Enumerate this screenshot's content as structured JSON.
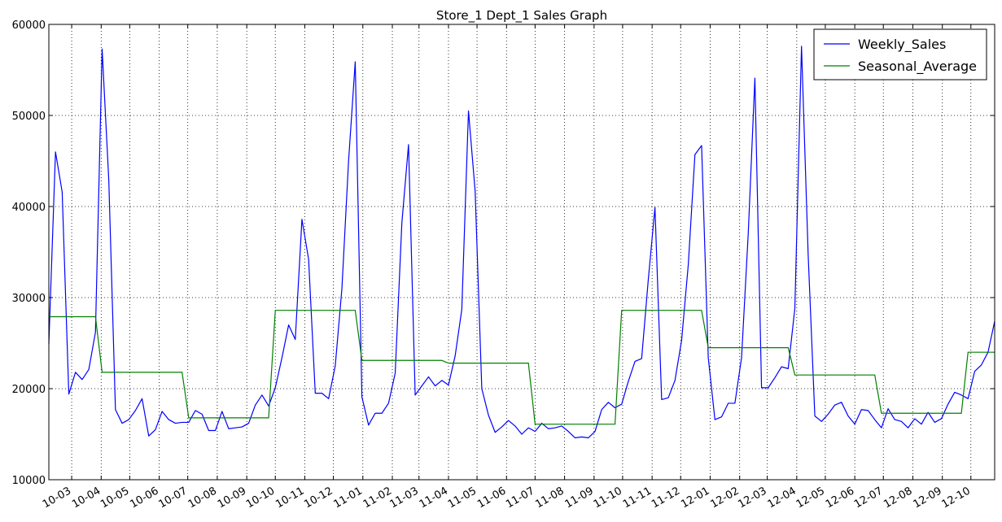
{
  "chart_data": {
    "type": "line",
    "title": "Store_1 Dept_1 Sales Graph",
    "xlabel": "",
    "ylabel": "",
    "x_range": [
      "2010-02-05",
      "2012-10-26"
    ],
    "ylim": [
      10000,
      60000
    ],
    "yticks": [
      10000,
      20000,
      30000,
      40000,
      50000,
      60000
    ],
    "xticks": [
      {
        "date": "2010-03-01",
        "label": "10-03"
      },
      {
        "date": "2010-04-01",
        "label": "10-04"
      },
      {
        "date": "2010-05-01",
        "label": "10-05"
      },
      {
        "date": "2010-06-01",
        "label": "10-06"
      },
      {
        "date": "2010-07-01",
        "label": "10-07"
      },
      {
        "date": "2010-08-01",
        "label": "10-08"
      },
      {
        "date": "2010-09-01",
        "label": "10-09"
      },
      {
        "date": "2010-10-01",
        "label": "10-10"
      },
      {
        "date": "2010-11-01",
        "label": "10-11"
      },
      {
        "date": "2010-12-01",
        "label": "10-12"
      },
      {
        "date": "2011-01-01",
        "label": "11-01"
      },
      {
        "date": "2011-02-01",
        "label": "11-02"
      },
      {
        "date": "2011-03-01",
        "label": "11-03"
      },
      {
        "date": "2011-04-01",
        "label": "11-04"
      },
      {
        "date": "2011-05-01",
        "label": "11-05"
      },
      {
        "date": "2011-06-01",
        "label": "11-06"
      },
      {
        "date": "2011-07-01",
        "label": "11-07"
      },
      {
        "date": "2011-08-01",
        "label": "11-08"
      },
      {
        "date": "2011-09-01",
        "label": "11-09"
      },
      {
        "date": "2011-10-01",
        "label": "11-10"
      },
      {
        "date": "2011-11-01",
        "label": "11-11"
      },
      {
        "date": "2011-12-01",
        "label": "11-12"
      },
      {
        "date": "2012-01-01",
        "label": "12-01"
      },
      {
        "date": "2012-02-01",
        "label": "12-02"
      },
      {
        "date": "2012-03-01",
        "label": "12-03"
      },
      {
        "date": "2012-04-01",
        "label": "12-04"
      },
      {
        "date": "2012-05-01",
        "label": "12-05"
      },
      {
        "date": "2012-06-01",
        "label": "12-06"
      },
      {
        "date": "2012-07-01",
        "label": "12-07"
      },
      {
        "date": "2012-08-01",
        "label": "12-08"
      },
      {
        "date": "2012-09-01",
        "label": "12-09"
      },
      {
        "date": "2012-10-01",
        "label": "12-10"
      }
    ],
    "grid": true,
    "legend": "top-right",
    "series": [
      {
        "name": "Weekly_Sales",
        "color": "#0000ff",
        "points": [
          [
            "2010-02-05",
            24900
          ],
          [
            "2010-02-12",
            46000
          ],
          [
            "2010-02-19",
            41600
          ],
          [
            "2010-02-26",
            19400
          ],
          [
            "2010-03-05",
            21800
          ],
          [
            "2010-03-12",
            21000
          ],
          [
            "2010-03-19",
            22100
          ],
          [
            "2010-03-26",
            26200
          ],
          [
            "2010-04-02",
            57300
          ],
          [
            "2010-04-09",
            42900
          ],
          [
            "2010-04-16",
            17700
          ],
          [
            "2010-04-23",
            16200
          ],
          [
            "2010-04-30",
            16600
          ],
          [
            "2010-05-07",
            17600
          ],
          [
            "2010-05-14",
            18900
          ],
          [
            "2010-05-21",
            14800
          ],
          [
            "2010-05-28",
            15500
          ],
          [
            "2010-06-04",
            17500
          ],
          [
            "2010-06-11",
            16600
          ],
          [
            "2010-06-18",
            16200
          ],
          [
            "2010-06-25",
            16300
          ],
          [
            "2010-07-02",
            16300
          ],
          [
            "2010-07-09",
            17600
          ],
          [
            "2010-07-16",
            17200
          ],
          [
            "2010-07-23",
            15400
          ],
          [
            "2010-07-30",
            15400
          ],
          [
            "2010-08-06",
            17500
          ],
          [
            "2010-08-13",
            15600
          ],
          [
            "2010-08-20",
            15700
          ],
          [
            "2010-08-27",
            15800
          ],
          [
            "2010-09-03",
            16200
          ],
          [
            "2010-09-10",
            18200
          ],
          [
            "2010-09-17",
            19300
          ],
          [
            "2010-09-24",
            18100
          ],
          [
            "2010-10-01",
            20100
          ],
          [
            "2010-10-08",
            23400
          ],
          [
            "2010-10-15",
            27000
          ],
          [
            "2010-10-22",
            25400
          ],
          [
            "2010-10-29",
            38600
          ],
          [
            "2010-11-05",
            34200
          ],
          [
            "2010-11-12",
            19500
          ],
          [
            "2010-11-19",
            19500
          ],
          [
            "2010-11-26",
            18900
          ],
          [
            "2010-12-03",
            22500
          ],
          [
            "2010-12-10",
            31000
          ],
          [
            "2010-12-17",
            45000
          ],
          [
            "2010-12-24",
            55900
          ],
          [
            "2010-12-31",
            19100
          ],
          [
            "2011-01-07",
            16000
          ],
          [
            "2011-01-14",
            17300
          ],
          [
            "2011-01-21",
            17300
          ],
          [
            "2011-01-28",
            18400
          ],
          [
            "2011-02-04",
            21700
          ],
          [
            "2011-02-11",
            38200
          ],
          [
            "2011-02-18",
            46800
          ],
          [
            "2011-02-25",
            19300
          ],
          [
            "2011-03-04",
            20300
          ],
          [
            "2011-03-11",
            21300
          ],
          [
            "2011-03-18",
            20300
          ],
          [
            "2011-03-25",
            20900
          ],
          [
            "2011-04-01",
            20400
          ],
          [
            "2011-04-08",
            23600
          ],
          [
            "2011-04-15",
            28700
          ],
          [
            "2011-04-22",
            50500
          ],
          [
            "2011-04-29",
            41700
          ],
          [
            "2011-05-06",
            20000
          ],
          [
            "2011-05-13",
            17100
          ],
          [
            "2011-05-20",
            15200
          ],
          [
            "2011-05-27",
            15800
          ],
          [
            "2011-06-03",
            16500
          ],
          [
            "2011-06-10",
            15900
          ],
          [
            "2011-06-17",
            15000
          ],
          [
            "2011-06-24",
            15700
          ],
          [
            "2011-07-01",
            15300
          ],
          [
            "2011-07-08",
            16200
          ],
          [
            "2011-07-15",
            15600
          ],
          [
            "2011-07-22",
            15700
          ],
          [
            "2011-07-29",
            15900
          ],
          [
            "2011-08-05",
            15300
          ],
          [
            "2011-08-12",
            14600
          ],
          [
            "2011-08-19",
            14700
          ],
          [
            "2011-08-26",
            14600
          ],
          [
            "2011-09-02",
            15300
          ],
          [
            "2011-09-09",
            17700
          ],
          [
            "2011-09-16",
            18500
          ],
          [
            "2011-09-23",
            17900
          ],
          [
            "2011-09-30",
            18300
          ],
          [
            "2011-10-07",
            20800
          ],
          [
            "2011-10-14",
            23000
          ],
          [
            "2011-10-21",
            23300
          ],
          [
            "2011-10-28",
            32000
          ],
          [
            "2011-11-04",
            39900
          ],
          [
            "2011-11-11",
            18800
          ],
          [
            "2011-11-18",
            19000
          ],
          [
            "2011-11-25",
            20900
          ],
          [
            "2011-12-02",
            25300
          ],
          [
            "2011-12-09",
            33600
          ],
          [
            "2011-12-16",
            45700
          ],
          [
            "2011-12-23",
            46700
          ],
          [
            "2011-12-30",
            23400
          ],
          [
            "2012-01-06",
            16600
          ],
          [
            "2012-01-13",
            16900
          ],
          [
            "2012-01-20",
            18400
          ],
          [
            "2012-01-27",
            18400
          ],
          [
            "2012-02-03",
            23400
          ],
          [
            "2012-02-10",
            37000
          ],
          [
            "2012-02-17",
            54100
          ],
          [
            "2012-02-24",
            20100
          ],
          [
            "2012-03-02",
            20100
          ],
          [
            "2012-03-09",
            21200
          ],
          [
            "2012-03-16",
            22400
          ],
          [
            "2012-03-23",
            22200
          ],
          [
            "2012-03-30",
            28800
          ],
          [
            "2012-04-06",
            57600
          ],
          [
            "2012-04-13",
            34700
          ],
          [
            "2012-04-20",
            17000
          ],
          [
            "2012-04-27",
            16400
          ],
          [
            "2012-05-04",
            17200
          ],
          [
            "2012-05-11",
            18200
          ],
          [
            "2012-05-18",
            18500
          ],
          [
            "2012-05-25",
            17000
          ],
          [
            "2012-06-01",
            16100
          ],
          [
            "2012-06-08",
            17700
          ],
          [
            "2012-06-15",
            17600
          ],
          [
            "2012-06-22",
            16600
          ],
          [
            "2012-06-29",
            15700
          ],
          [
            "2012-07-06",
            17800
          ],
          [
            "2012-07-13",
            16600
          ],
          [
            "2012-07-20",
            16400
          ],
          [
            "2012-07-27",
            15700
          ],
          [
            "2012-08-03",
            16700
          ],
          [
            "2012-08-10",
            16100
          ],
          [
            "2012-08-17",
            17400
          ],
          [
            "2012-08-24",
            16300
          ],
          [
            "2012-08-31",
            16700
          ],
          [
            "2012-09-07",
            18300
          ],
          [
            "2012-09-14",
            19600
          ],
          [
            "2012-09-21",
            19300
          ],
          [
            "2012-09-28",
            18900
          ],
          [
            "2012-10-05",
            21900
          ],
          [
            "2012-10-12",
            22600
          ],
          [
            "2012-10-19",
            24000
          ],
          [
            "2012-10-26",
            27400
          ]
        ]
      },
      {
        "name": "Seasonal_Average",
        "color": "#008000",
        "steps": [
          {
            "from": "2010-02-05",
            "to": "2010-03-26",
            "value": 27900
          },
          {
            "from": "2010-04-02",
            "to": "2010-06-25",
            "value": 21800
          },
          {
            "from": "2010-07-02",
            "to": "2010-09-24",
            "value": 16800
          },
          {
            "from": "2010-10-01",
            "to": "2010-12-24",
            "value": 28600
          },
          {
            "from": "2010-12-31",
            "to": "2011-03-25",
            "value": 23100
          },
          {
            "from": "2011-04-01",
            "to": "2011-06-24",
            "value": 22800
          },
          {
            "from": "2011-07-01",
            "to": "2011-09-23",
            "value": 16100
          },
          {
            "from": "2011-09-30",
            "to": "2011-12-23",
            "value": 28600
          },
          {
            "from": "2011-12-30",
            "to": "2012-03-23",
            "value": 24500
          },
          {
            "from": "2012-03-30",
            "to": "2012-06-22",
            "value": 21500
          },
          {
            "from": "2012-06-29",
            "to": "2012-09-21",
            "value": 17300
          },
          {
            "from": "2012-09-28",
            "to": "2012-10-26",
            "value": 24000
          }
        ]
      }
    ]
  }
}
